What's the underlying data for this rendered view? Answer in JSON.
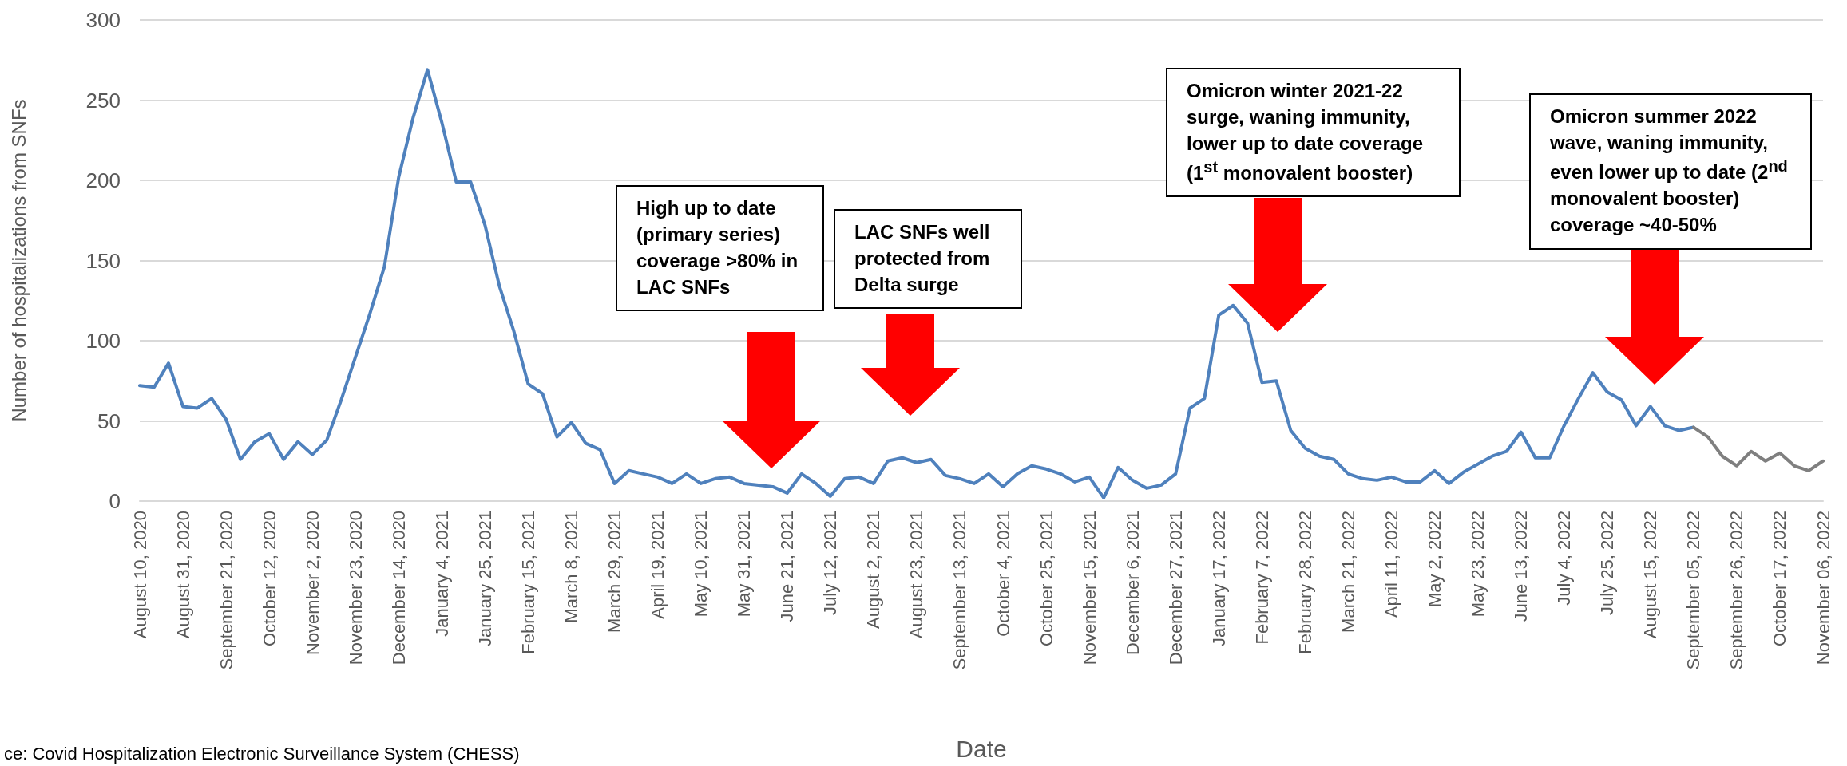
{
  "chart_data": {
    "type": "line",
    "xlabel": "Date",
    "ylabel": "Number of hospitalizations from SNFs",
    "categories": [
      "August 10, 2020",
      null,
      null,
      "August 31, 2020",
      null,
      null,
      "September 21, 2020",
      null,
      null,
      "October 12, 2020",
      null,
      null,
      "November 2, 2020",
      null,
      null,
      "November 23, 2020",
      null,
      null,
      "December 14, 2020",
      null,
      null,
      "January 4, 2021",
      null,
      null,
      "January 25, 2021",
      null,
      null,
      "February 15, 2021",
      null,
      null,
      "March 8, 2021",
      null,
      null,
      "March 29, 2021",
      null,
      null,
      "April 19, 2021",
      null,
      null,
      "May 10, 2021",
      null,
      null,
      "May 31, 2021",
      null,
      null,
      "June 21, 2021",
      null,
      null,
      "July 12, 2021",
      null,
      null,
      "August 2, 2021",
      null,
      null,
      "August 23, 2021",
      null,
      null,
      "September 13, 2021",
      null,
      null,
      "October 4, 2021",
      null,
      null,
      "October 25, 2021",
      null,
      null,
      "November 15, 2021",
      null,
      null,
      "December 6, 2021",
      null,
      null,
      "December 27, 2021",
      null,
      null,
      "January 17, 2022",
      null,
      null,
      "February 7, 2022",
      null,
      null,
      "February 28, 2022",
      null,
      null,
      "March 21, 2022",
      null,
      null,
      "April 11, 2022",
      null,
      null,
      "May 2, 2022",
      null,
      null,
      "May 23, 2022",
      null,
      null,
      "June 13, 2022",
      null,
      null,
      "July 4, 2022",
      null,
      null,
      "July 25, 2022",
      null,
      null,
      "August 15, 2022",
      null,
      null,
      "September 05, 2022",
      null,
      null,
      "September 26, 2022",
      null,
      null,
      "October 17, 2022",
      null,
      null,
      "November 06, 2022"
    ],
    "series": [
      {
        "color": "#4f81bd",
        "values": [
          72,
          71,
          86,
          59,
          58,
          64,
          51,
          26,
          37,
          42,
          26,
          37,
          29,
          38,
          63,
          90,
          117,
          146,
          202,
          239,
          269,
          236,
          199,
          199,
          172,
          134,
          106,
          73,
          67,
          40,
          49,
          36,
          32,
          11,
          19,
          17,
          15,
          11,
          17,
          11,
          14,
          15,
          11,
          10,
          9,
          5,
          17,
          11,
          3,
          14,
          15,
          11,
          25,
          27,
          24,
          26,
          16,
          14,
          11,
          17,
          9,
          17,
          22,
          20,
          17,
          12,
          15,
          2,
          21,
          13,
          8,
          10,
          17,
          58,
          64,
          116,
          122,
          111,
          74,
          75,
          44,
          33,
          28,
          26,
          17,
          14,
          13,
          15,
          12,
          12,
          19,
          11,
          18,
          23,
          28,
          31,
          43,
          27,
          27,
          47,
          64,
          80,
          68,
          63,
          47,
          59,
          47,
          44,
          46,
          null,
          null,
          null,
          null,
          null,
          null,
          null,
          null,
          null
        ]
      },
      {
        "color": "#7f7f7f",
        "values": [
          null,
          null,
          null,
          null,
          null,
          null,
          null,
          null,
          null,
          null,
          null,
          null,
          null,
          null,
          null,
          null,
          null,
          null,
          null,
          null,
          null,
          null,
          null,
          null,
          null,
          null,
          null,
          null,
          null,
          null,
          null,
          null,
          null,
          null,
          null,
          null,
          null,
          null,
          null,
          null,
          null,
          null,
          null,
          null,
          null,
          null,
          null,
          null,
          null,
          null,
          null,
          null,
          null,
          null,
          null,
          null,
          null,
          null,
          null,
          null,
          null,
          null,
          null,
          null,
          null,
          null,
          null,
          null,
          null,
          null,
          null,
          null,
          null,
          null,
          null,
          null,
          null,
          null,
          null,
          null,
          null,
          null,
          null,
          null,
          null,
          null,
          null,
          null,
          null,
          null,
          null,
          null,
          null,
          null,
          null,
          null,
          null,
          null,
          null,
          null,
          null,
          null,
          null,
          null,
          null,
          null,
          null,
          null,
          46,
          40,
          28,
          22,
          31,
          25,
          30,
          22,
          19,
          25
        ]
      }
    ],
    "ylim": [
      0,
      300
    ],
    "yticks": [
      0,
      50,
      100,
      150,
      200,
      250,
      300
    ],
    "grid": "y",
    "marker": "none",
    "line_style": "solid",
    "annotations": [
      "High up to date (primary series) coverage >80% in LAC SNFs",
      "LAC SNFs well protected from Delta surge",
      "Omicron winter 2021-22 surge, waning immunity, lower up to date coverage (1$^{st}$ monovalent booster)",
      "Omicron summer 2022 wave, waning immunity, even lower up to date (2$^{nd}$ monovalent booster) coverage ~40-50%",
      "ce: Covid Hospitalization Electronic Surveillance System (CHESS)"
    ]
  }
}
